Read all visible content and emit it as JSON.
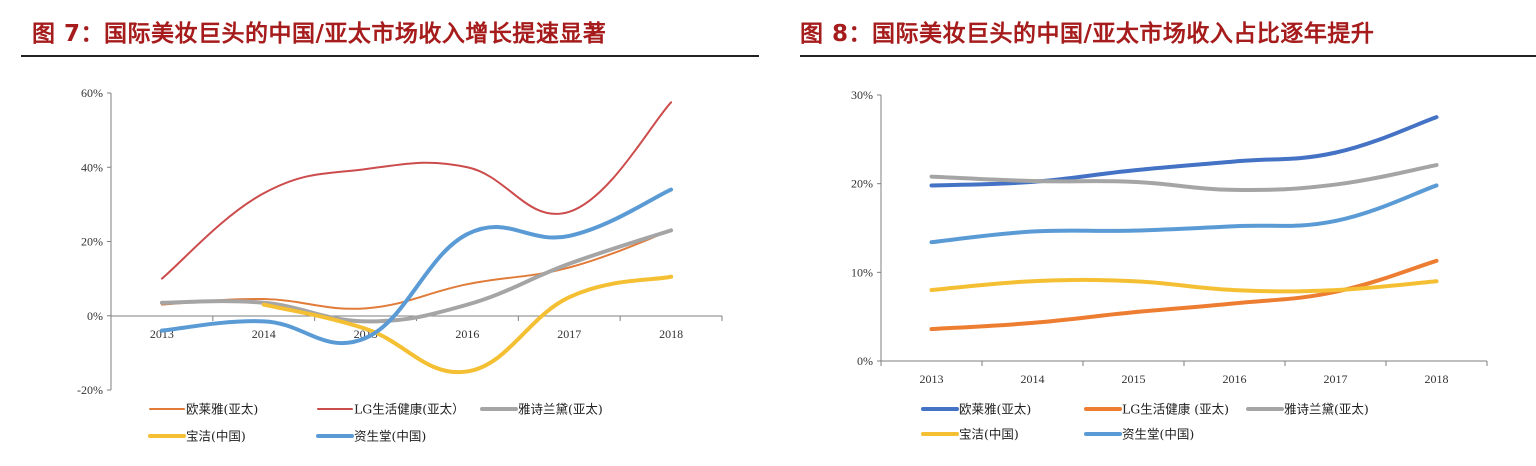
{
  "chart_data": [
    {
      "type": "line",
      "title": "图 7：国际美妆巨头的中国/亚太市场收入增长提速显著",
      "xlabel": "",
      "ylabel": "",
      "categories": [
        "2013",
        "2014",
        "2015",
        "2016",
        "2017",
        "2018"
      ],
      "ylim": [
        -0.2,
        0.6
      ],
      "yticks": [
        -0.2,
        0,
        0.2,
        0.4,
        0.6
      ],
      "ytick_labels": [
        "-20%",
        "0%",
        "20%",
        "40%",
        "60%"
      ],
      "grid": false,
      "smooth": true,
      "legend_position": "bottom",
      "series": [
        {
          "name": "欧莱雅(亚太)",
          "color": "#e07b39",
          "width": 2,
          "values": [
            0.03,
            0.045,
            0.02,
            0.085,
            0.13,
            0.23
          ]
        },
        {
          "name": "LG生活健康(亚太）",
          "color": "#cc4c4c",
          "width": 2,
          "values": [
            0.1,
            0.33,
            0.395,
            0.4,
            0.28,
            0.575
          ]
        },
        {
          "name": "雅诗兰黛(亚太)",
          "color": "#a5a5a5",
          "width": 4,
          "values": [
            0.035,
            0.035,
            -0.015,
            0.03,
            0.14,
            0.23
          ]
        },
        {
          "name": "宝洁(中国)",
          "color": "#f4bf32",
          "width": 4,
          "values": [
            null,
            0.03,
            -0.035,
            -0.15,
            0.05,
            0.105
          ]
        },
        {
          "name": "资生堂(中国)",
          "color": "#5b9bd5",
          "width": 4,
          "values": [
            -0.04,
            -0.015,
            -0.06,
            0.22,
            0.215,
            0.34
          ]
        }
      ]
    },
    {
      "type": "line",
      "title": "图 8：国际美妆巨头的中国/亚太市场收入占比逐年提升",
      "xlabel": "",
      "ylabel": "",
      "categories": [
        "2013",
        "2014",
        "2015",
        "2016",
        "2017",
        "2018"
      ],
      "ylim": [
        0,
        0.3
      ],
      "yticks": [
        0,
        0.1,
        0.2,
        0.3
      ],
      "ytick_labels": [
        "0%",
        "10%",
        "20%",
        "30%"
      ],
      "grid": false,
      "smooth": true,
      "legend_position": "bottom",
      "series": [
        {
          "name": "欧莱雅(亚太)",
          "color": "#4472c4",
          "width": 4,
          "values": [
            0.198,
            0.202,
            0.215,
            0.225,
            0.235,
            0.275
          ]
        },
        {
          "name": "LG生活健康 (亚太)",
          "color": "#ed7d31",
          "width": 4,
          "values": [
            0.036,
            0.043,
            0.055,
            0.065,
            0.078,
            0.113
          ]
        },
        {
          "name": "雅诗兰黛(亚太)",
          "color": "#a5a5a5",
          "width": 4,
          "values": [
            0.208,
            0.203,
            0.202,
            0.193,
            0.199,
            0.221
          ]
        },
        {
          "name": "宝洁(中国)",
          "color": "#f4bf32",
          "width": 4,
          "values": [
            0.08,
            0.09,
            0.09,
            0.08,
            0.08,
            0.09
          ]
        },
        {
          "name": "资生堂(中国)",
          "color": "#5b9bd5",
          "width": 4,
          "values": [
            0.134,
            0.146,
            0.147,
            0.152,
            0.158,
            0.198
          ]
        }
      ]
    }
  ]
}
